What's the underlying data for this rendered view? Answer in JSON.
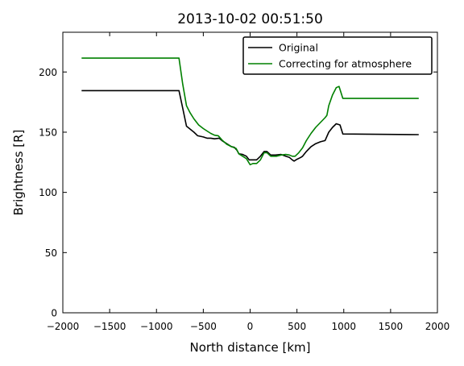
{
  "chart_data": {
    "type": "line",
    "title": "2013-10-02 00:51:50",
    "xlabel": "North distance [km]",
    "ylabel": "Brightness [R]",
    "xlim": [
      -2000,
      2000
    ],
    "ylim": [
      0,
      233
    ],
    "xticks": [
      -2000,
      -1500,
      -1000,
      -500,
      0,
      500,
      1000,
      1500,
      2000
    ],
    "xtick_labels": [
      "−2000",
      "−1500",
      "−1000",
      "−500",
      "0",
      "500",
      "1000",
      "1500",
      "2000"
    ],
    "yticks": [
      0,
      50,
      100,
      150,
      200
    ],
    "ytick_labels": [
      "0",
      "50",
      "100",
      "150",
      "200"
    ],
    "grid": false,
    "legend_position": "top-right",
    "series": [
      {
        "name": "Original",
        "color": "#000000",
        "points": [
          [
            -1800,
            184.5
          ],
          [
            -760,
            184.5
          ],
          [
            -720,
            170
          ],
          [
            -680,
            155
          ],
          [
            -600,
            150
          ],
          [
            -560,
            147
          ],
          [
            -500,
            146
          ],
          [
            -460,
            145
          ],
          [
            -420,
            145
          ],
          [
            -380,
            144.5
          ],
          [
            -330,
            145
          ],
          [
            -300,
            143
          ],
          [
            -250,
            140.5
          ],
          [
            -200,
            138
          ],
          [
            -170,
            137.5
          ],
          [
            -140,
            135
          ],
          [
            -120,
            132
          ],
          [
            -80,
            131.5
          ],
          [
            -40,
            130
          ],
          [
            -10,
            127
          ],
          [
            20,
            127
          ],
          [
            70,
            127
          ],
          [
            110,
            130
          ],
          [
            150,
            134
          ],
          [
            180,
            134
          ],
          [
            220,
            131
          ],
          [
            270,
            131
          ],
          [
            330,
            131.5
          ],
          [
            380,
            130
          ],
          [
            420,
            129
          ],
          [
            450,
            127
          ],
          [
            470,
            126
          ],
          [
            500,
            127.5
          ],
          [
            540,
            129
          ],
          [
            560,
            130
          ],
          [
            600,
            134
          ],
          [
            650,
            138
          ],
          [
            700,
            140.5
          ],
          [
            750,
            142
          ],
          [
            800,
            143
          ],
          [
            840,
            150
          ],
          [
            880,
            154
          ],
          [
            920,
            157
          ],
          [
            960,
            156
          ],
          [
            990,
            148.5
          ],
          [
            1800,
            148
          ]
        ]
      },
      {
        "name": "Correcting for atmosphere",
        "color": "#008000",
        "points": [
          [
            -1800,
            211.5
          ],
          [
            -760,
            211.5
          ],
          [
            -720,
            190
          ],
          [
            -680,
            172
          ],
          [
            -640,
            166
          ],
          [
            -600,
            161
          ],
          [
            -550,
            156
          ],
          [
            -500,
            153
          ],
          [
            -460,
            151
          ],
          [
            -420,
            149
          ],
          [
            -380,
            147.5
          ],
          [
            -340,
            147
          ],
          [
            -300,
            143.5
          ],
          [
            -250,
            140
          ],
          [
            -200,
            138
          ],
          [
            -150,
            136.5
          ],
          [
            -120,
            132
          ],
          [
            -80,
            130
          ],
          [
            -40,
            128
          ],
          [
            0,
            123
          ],
          [
            30,
            124
          ],
          [
            70,
            124
          ],
          [
            110,
            127
          ],
          [
            150,
            133
          ],
          [
            180,
            133
          ],
          [
            220,
            130
          ],
          [
            280,
            130
          ],
          [
            330,
            131
          ],
          [
            380,
            131.5
          ],
          [
            420,
            131
          ],
          [
            450,
            130
          ],
          [
            480,
            130
          ],
          [
            520,
            133
          ],
          [
            560,
            137
          ],
          [
            600,
            143
          ],
          [
            650,
            149
          ],
          [
            700,
            154
          ],
          [
            750,
            158
          ],
          [
            800,
            162
          ],
          [
            820,
            164
          ],
          [
            840,
            172
          ],
          [
            880,
            181
          ],
          [
            920,
            187
          ],
          [
            950,
            188
          ],
          [
            990,
            178
          ],
          [
            1800,
            178
          ]
        ]
      }
    ]
  }
}
